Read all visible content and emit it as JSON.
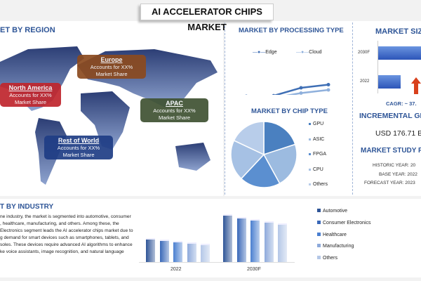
{
  "title": "AI ACCELERATOR CHIPS MARKET",
  "region": {
    "heading": "ET BY REGION",
    "boxes": [
      {
        "name": "Europe",
        "line1": "Accounts for XX%",
        "line2": "Market Share",
        "color": "#8b4a1f"
      },
      {
        "name": "North America",
        "line1": "Accounts for XX%",
        "line2": "Market Share",
        "color": "#c0262d"
      },
      {
        "name": "APAC",
        "line1": "Accounts for XX%",
        "line2": "Market Share",
        "color": "#3f5233"
      },
      {
        "name": "Rest of World",
        "line1": "Accounts for XX%",
        "line2": "Market Share",
        "color": "#1f3d85"
      }
    ]
  },
  "processing": {
    "heading": "MARKET BY PROCESSING TYPE",
    "chart_data": {
      "type": "line",
      "series": [
        {
          "name": "Edge",
          "values": [
            1.0,
            1.05,
            1.8,
            2.1
          ],
          "color": "#3f6fb5"
        },
        {
          "name": "Cloud",
          "values": [
            0.8,
            0.85,
            1.3,
            1.6
          ],
          "color": "#8fb0dc"
        }
      ],
      "ylim": [
        0,
        4
      ]
    }
  },
  "chip": {
    "heading": "MARKET BY CHIP TYPE",
    "chart_data": {
      "type": "pie",
      "labels": [
        "GPU",
        "ASIC",
        "FPGA",
        "CPU",
        "Others"
      ],
      "values": [
        20,
        22,
        20,
        20,
        18
      ],
      "colors": [
        "#4a80c0",
        "#9cbbe0",
        "#5b8fd0",
        "#a6c1e4",
        "#b8cdea"
      ]
    }
  },
  "size": {
    "heading": "MARKET SIZ",
    "chart_data": {
      "type": "bar",
      "categories": [
        "2030F",
        "2022"
      ],
      "values": [
        100,
        45
      ]
    },
    "cagr": "CAGR:  ~ 37.",
    "incremental_heading": "INCREMENTAL GRO",
    "incremental_value": "USD 176.71 B",
    "study_heading": "MARKET STUDY PE",
    "historic": "HISTORIC YEAR: 20",
    "base": "BASE YEAR: 2022",
    "forecast": "FORECAST YEAR: 2023"
  },
  "industry": {
    "heading": "T BY INDUSTRY",
    "text": [
      "ne industry, the market is segmented into automotive, consumer",
      ", healthcare, manufacturing, and others. Among these, the",
      "Electronics segment leads the AI accelerator chips market due to",
      "g demand for smart devices such as smartphones, tablets, and",
      "soles. These devices require advanced AI algorithms to enhance",
      "ke voice assistants, image recognition, and natural language"
    ],
    "chart_data": {
      "type": "bar",
      "categories": [
        "2022",
        "2030F"
      ],
      "series": [
        {
          "name": "Automotive",
          "values": [
            34,
            68
          ],
          "color": "#2f5597"
        },
        {
          "name": "Consumer Electronics",
          "values": [
            32,
            64
          ],
          "color": "#3a68b8"
        },
        {
          "name": "Healthcare",
          "values": [
            30,
            61
          ],
          "color": "#4a7fd0"
        },
        {
          "name": "Manufacturing",
          "values": [
            28,
            58
          ],
          "color": "#8eaadb"
        },
        {
          "name": "Others",
          "values": [
            26,
            55
          ],
          "color": "#b4c7e7"
        }
      ]
    }
  }
}
